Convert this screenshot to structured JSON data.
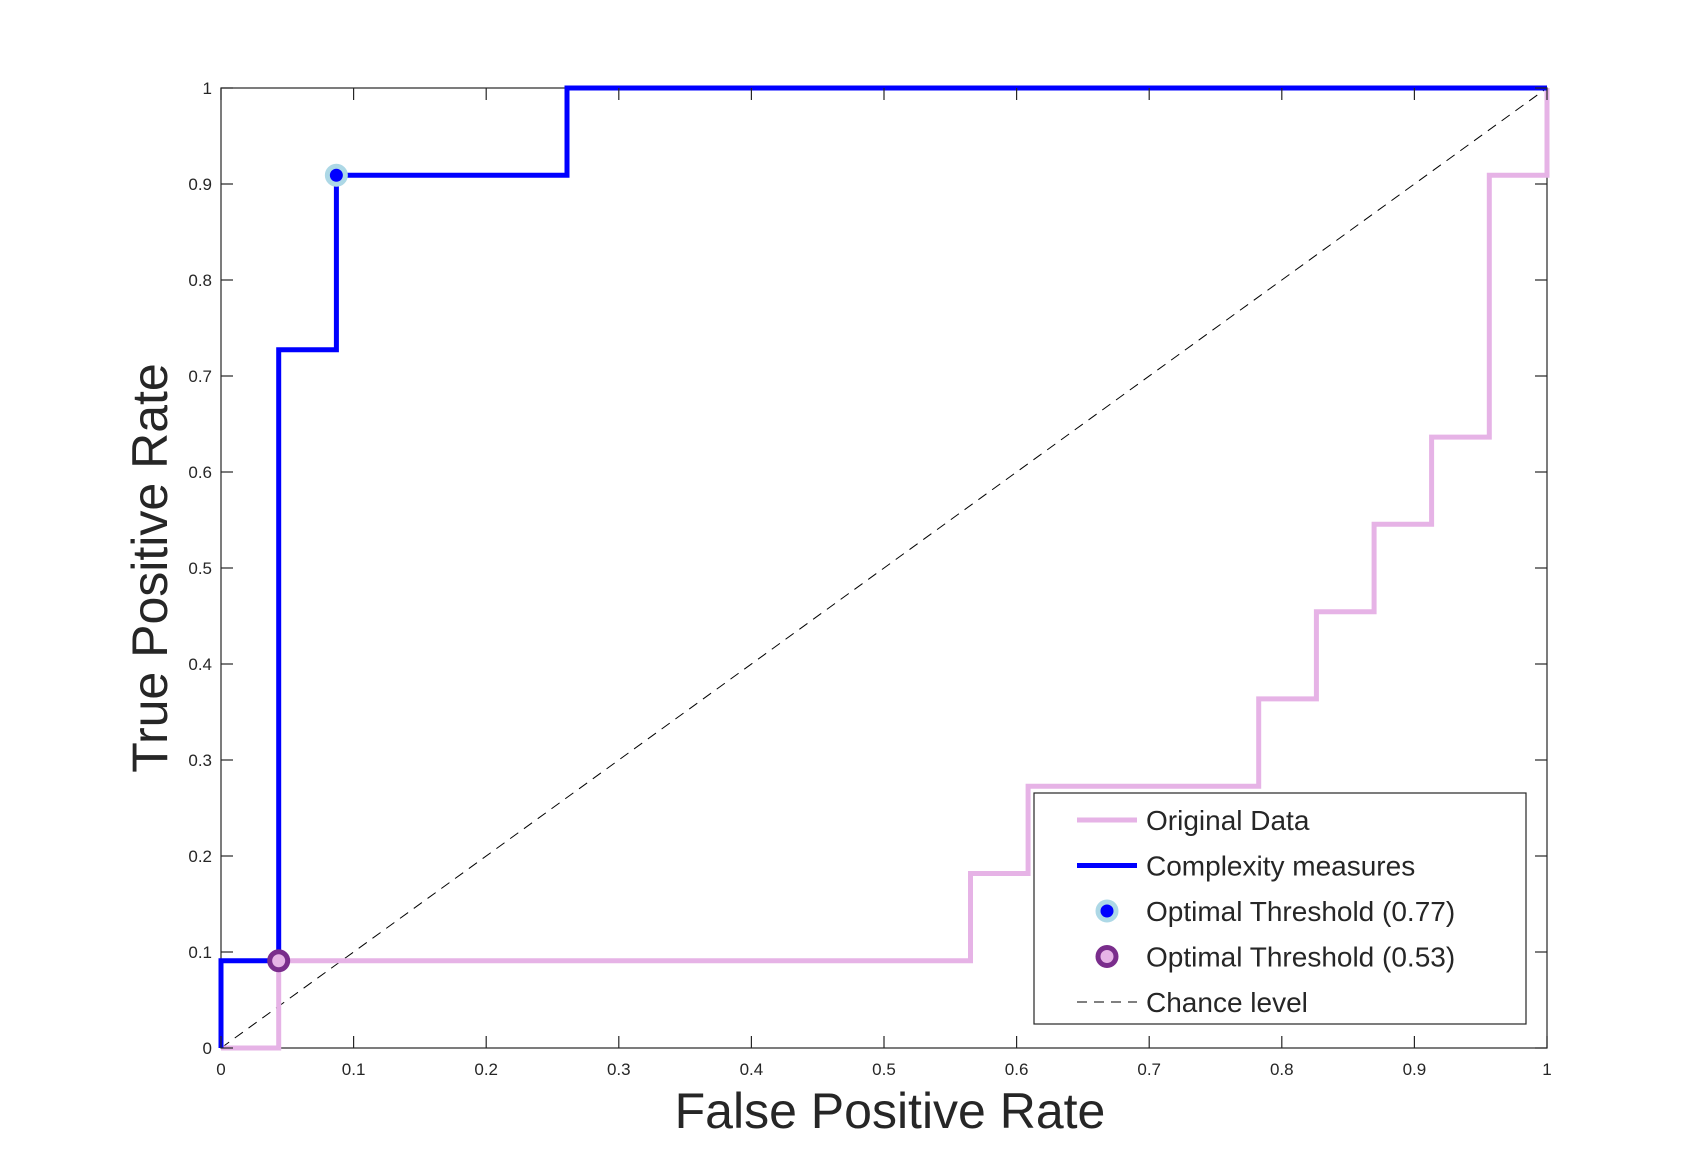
{
  "chart_data": {
    "type": "line",
    "title": "",
    "xlabel": "False Positive Rate",
    "ylabel": "True Positive Rate",
    "xlim": [
      0,
      1
    ],
    "ylim": [
      0,
      1
    ],
    "xticks": [
      "0",
      "0.1",
      "0.2",
      "0.3",
      "0.4",
      "0.5",
      "0.6",
      "0.7",
      "0.8",
      "0.9",
      "1"
    ],
    "yticks": [
      "0",
      "0.1",
      "0.2",
      "0.3",
      "0.4",
      "0.5",
      "0.6",
      "0.7",
      "0.8",
      "0.9",
      "1"
    ],
    "grid": false,
    "legend_position": "bottom-right",
    "series": [
      {
        "name": "Original Data",
        "kind": "step-line",
        "color": "#e6b3e6",
        "x": [
          0,
          0.0435,
          0.0435,
          0.5652,
          0.5652,
          0.6087,
          0.6087,
          0.7826,
          0.7826,
          0.8261,
          0.8261,
          0.8696,
          0.8696,
          0.913,
          0.913,
          0.9565,
          0.9565,
          1,
          1
        ],
        "y": [
          0,
          0,
          0.0909,
          0.0909,
          0.1818,
          0.1818,
          0.2727,
          0.2727,
          0.3636,
          0.3636,
          0.4545,
          0.4545,
          0.5455,
          0.5455,
          0.6364,
          0.6364,
          0.9091,
          0.9091,
          1
        ]
      },
      {
        "name": "Complexity measures",
        "kind": "step-line",
        "color": "#0000ff",
        "x": [
          0,
          0,
          0.0435,
          0.0435,
          0.087,
          0.087,
          0.2609,
          0.2609,
          1
        ],
        "y": [
          0,
          0.0909,
          0.0909,
          0.7273,
          0.7273,
          0.9091,
          0.9091,
          1,
          1
        ]
      },
      {
        "name": "Optimal Threshold (0.77)",
        "kind": "marker",
        "fill": "#0000ff",
        "edge": "#add8e6",
        "x": [
          0.087
        ],
        "y": [
          0.9091
        ]
      },
      {
        "name": "Optimal Threshold (0.53)",
        "kind": "marker",
        "fill": "#e6b3e6",
        "edge": "#7a2d8c",
        "x": [
          0.0435
        ],
        "y": [
          0.0909
        ]
      },
      {
        "name": "Chance level",
        "kind": "dashed-line",
        "color": "#000000",
        "x": [
          0,
          1
        ],
        "y": [
          0,
          1
        ]
      }
    ]
  }
}
